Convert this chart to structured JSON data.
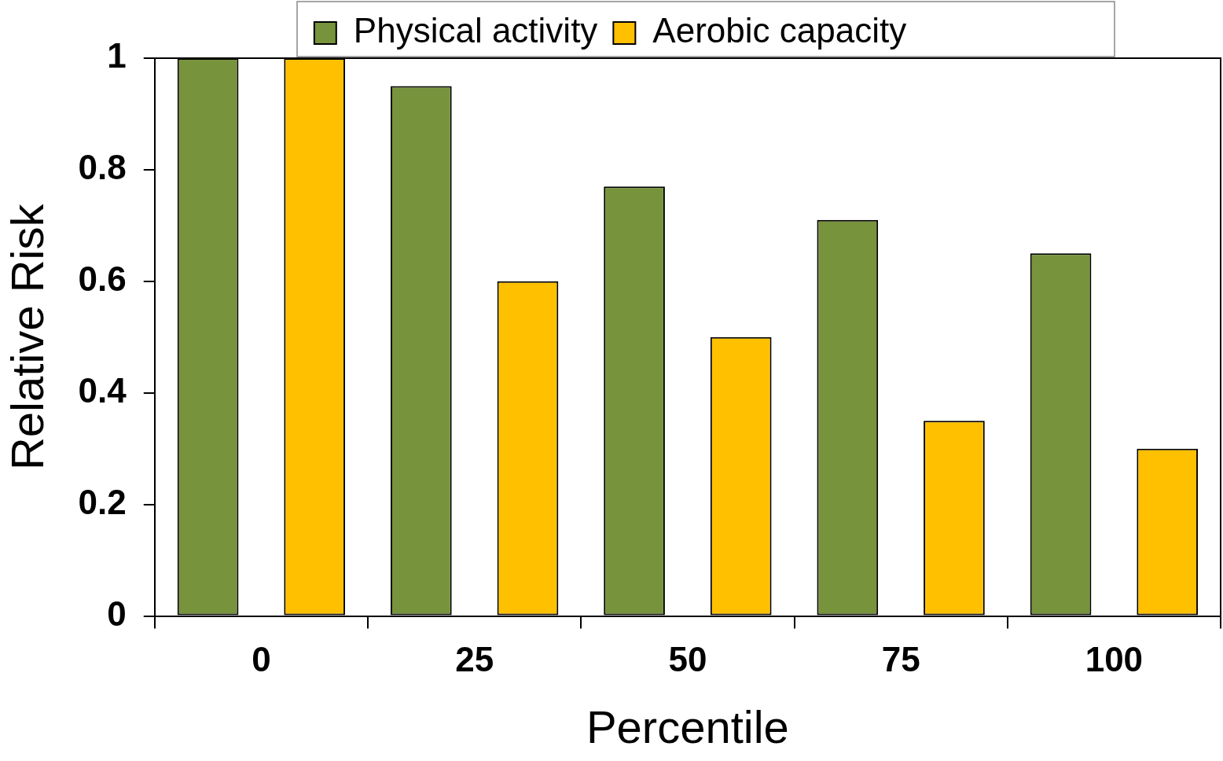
{
  "chart_data": {
    "type": "bar",
    "xlabel": "Percentile",
    "ylabel": "Relative Risk",
    "categories": [
      "0",
      "25",
      "50",
      "75",
      "100"
    ],
    "series": [
      {
        "name": "Physical activity",
        "color": "#77933c",
        "values": [
          1,
          0.95,
          0.77,
          0.71,
          0.65
        ]
      },
      {
        "name": "Aerobic capacity",
        "color": "#ffc000",
        "values": [
          1,
          0.6,
          0.5,
          0.35,
          0.3
        ]
      }
    ],
    "ylim": [
      0,
      1
    ],
    "yticks": [
      0,
      0.2,
      0.4,
      0.6,
      0.8,
      1
    ],
    "grid": false,
    "legend": "top"
  }
}
